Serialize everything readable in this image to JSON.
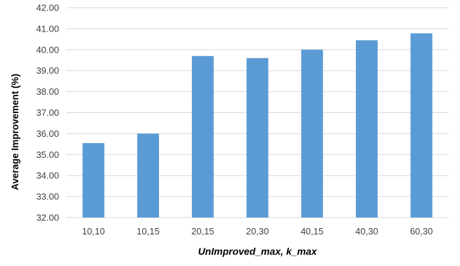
{
  "chart_data": {
    "type": "bar",
    "title": "",
    "xlabel": "UnImproved_max, k_max",
    "ylabel": "Average Improvement (%)",
    "categories": [
      "10,10",
      "10,15",
      "20,15",
      "20,30",
      "40,15",
      "40,30",
      "60,30"
    ],
    "values": [
      35.55,
      36.0,
      39.7,
      39.6,
      40.0,
      40.45,
      40.78
    ],
    "ylim": [
      32.0,
      42.0
    ],
    "y_ticks": [
      "32.00",
      "33.00",
      "34.00",
      "35.00",
      "36.00",
      "37.00",
      "38.00",
      "39.00",
      "40.00",
      "41.00",
      "42.00"
    ],
    "grid": true,
    "legend": "none",
    "bar_color": "#5B9BD5",
    "grid_color": "#D9D9D9",
    "text_color": "#404040",
    "axis_label_color": "#000000"
  }
}
